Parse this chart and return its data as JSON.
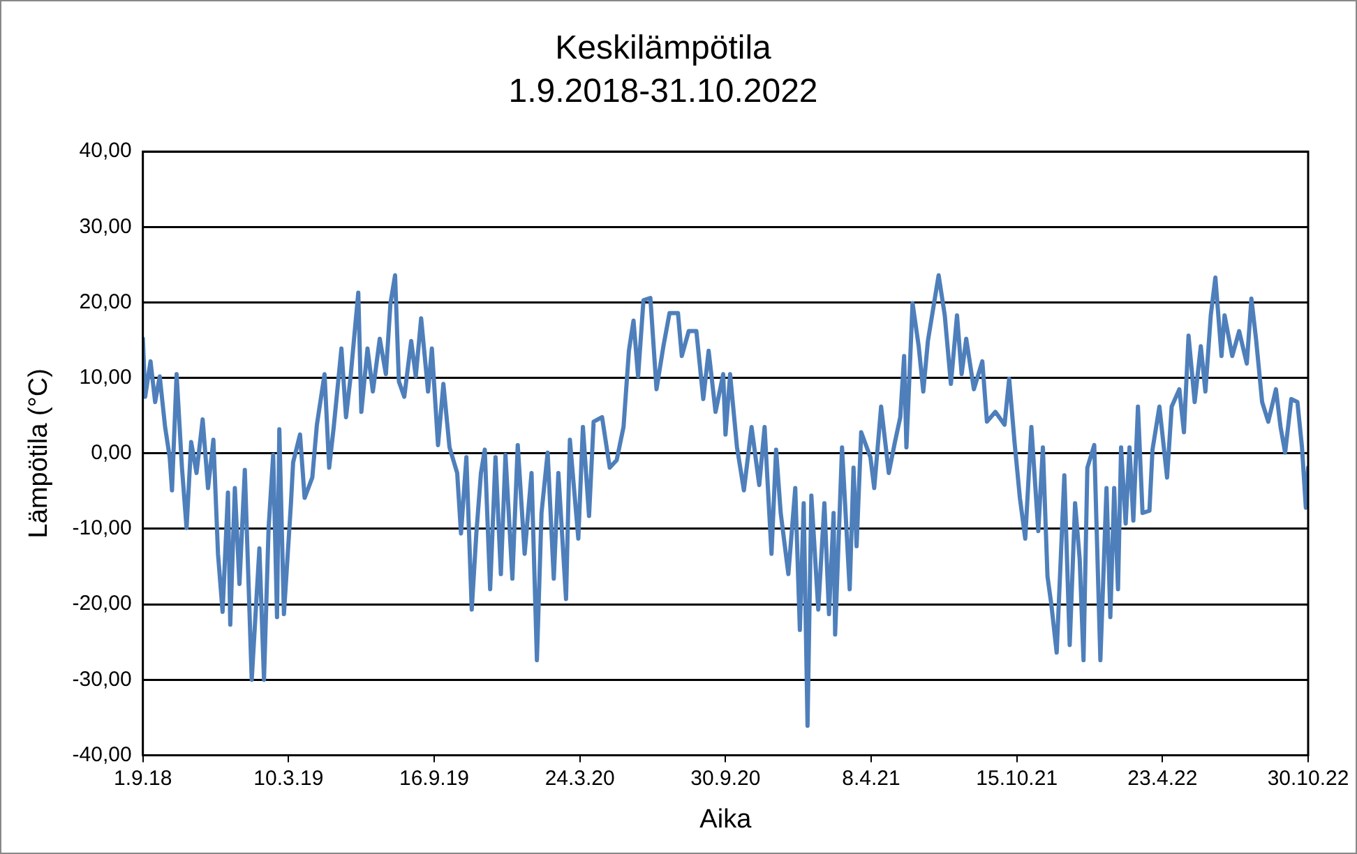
{
  "chart_data": {
    "type": "line",
    "title": "Keskilämpötila",
    "subtitle": "1.9.2018-31.10.2022",
    "xlabel": "Aika",
    "ylabel": "Lämpötila (°C)",
    "xlim": [
      "2018-09-01",
      "2022-10-30"
    ],
    "xticks": [
      {
        "value": "2018-09-01",
        "label": "1.9.18"
      },
      {
        "value": "2019-03-10",
        "label": "10.3.19"
      },
      {
        "value": "2019-09-16",
        "label": "16.9.19"
      },
      {
        "value": "2020-03-24",
        "label": "24.3.20"
      },
      {
        "value": "2020-09-30",
        "label": "30.9.20"
      },
      {
        "value": "2021-04-08",
        "label": "8.4.21"
      },
      {
        "value": "2021-10-15",
        "label": "15.10.21"
      },
      {
        "value": "2022-04-23",
        "label": "23.4.22"
      },
      {
        "value": "2022-10-30",
        "label": "30.10.22"
      }
    ],
    "ylim": [
      -40,
      40
    ],
    "yticks": [
      {
        "value": -40,
        "label": "-40,00"
      },
      {
        "value": -30,
        "label": "-30,00"
      },
      {
        "value": -20,
        "label": "-20,00"
      },
      {
        "value": -10,
        "label": "-10,00"
      },
      {
        "value": 0,
        "label": "0,00"
      },
      {
        "value": 10,
        "label": "10,00"
      },
      {
        "value": 20,
        "label": "20,00"
      },
      {
        "value": 30,
        "label": "30,00"
      },
      {
        "value": 40,
        "label": "40,00"
      }
    ],
    "grid": "y",
    "legend": false,
    "marker": "none",
    "line_style": "solid",
    "x": [
      "2018-09-01",
      "2018-09-04",
      "2018-09-11",
      "2018-09-17",
      "2018-09-23",
      "2018-09-30",
      "2018-10-06",
      "2018-10-09",
      "2018-10-15",
      "2018-10-22",
      "2018-10-28",
      "2018-11-03",
      "2018-11-10",
      "2018-11-18",
      "2018-11-25",
      "2018-12-02",
      "2018-12-08",
      "2018-12-14",
      "2018-12-21",
      "2018-12-24",
      "2018-12-30",
      "2019-01-05",
      "2019-01-12",
      "2019-01-21",
      "2019-01-31",
      "2019-02-06",
      "2019-02-12",
      "2019-02-18",
      "2019-02-23",
      "2019-02-26",
      "2019-03-04",
      "2019-03-13",
      "2019-03-16",
      "2019-03-25",
      "2019-03-31",
      "2019-04-10",
      "2019-04-16",
      "2019-04-26",
      "2019-05-02",
      "2019-05-08",
      "2019-05-18",
      "2019-05-24",
      "2019-05-30",
      "2019-06-09",
      "2019-06-13",
      "2019-06-21",
      "2019-06-28",
      "2019-07-07",
      "2019-07-15",
      "2019-07-21",
      "2019-07-27",
      "2019-08-01",
      "2019-08-08",
      "2019-08-17",
      "2019-08-23",
      "2019-08-30",
      "2019-09-08",
      "2019-09-13",
      "2019-09-21",
      "2019-09-28",
      "2019-10-06",
      "2019-10-16",
      "2019-10-21",
      "2019-10-28",
      "2019-11-04",
      "2019-11-10",
      "2019-11-16",
      "2019-11-21",
      "2019-11-28",
      "2019-12-05",
      "2019-12-12",
      "2019-12-18",
      "2019-12-27",
      "2020-01-03",
      "2020-01-12",
      "2020-01-21",
      "2020-01-28",
      "2020-02-03",
      "2020-02-11",
      "2020-02-19",
      "2020-02-25",
      "2020-03-06",
      "2020-03-11",
      "2020-03-22",
      "2020-03-28",
      "2020-04-05",
      "2020-04-11",
      "2020-04-22",
      "2020-05-02",
      "2020-05-11",
      "2020-05-20",
      "2020-05-27",
      "2020-06-02",
      "2020-06-08",
      "2020-06-15",
      "2020-06-24",
      "2020-07-02",
      "2020-07-11",
      "2020-07-19",
      "2020-07-30",
      "2020-08-04",
      "2020-08-13",
      "2020-08-23",
      "2020-09-01",
      "2020-09-08",
      "2020-09-17",
      "2020-09-27",
      "2020-09-30",
      "2020-10-06",
      "2020-10-15",
      "2020-10-24",
      "2020-11-03",
      "2020-11-13",
      "2020-11-20",
      "2020-11-29",
      "2020-12-05",
      "2020-12-11",
      "2020-12-21",
      "2020-12-30",
      "2021-01-05",
      "2021-01-10",
      "2021-01-15",
      "2021-01-20",
      "2021-01-29",
      "2021-02-06",
      "2021-02-12",
      "2021-02-18",
      "2021-02-20",
      "2021-03-01",
      "2021-03-11",
      "2021-03-16",
      "2021-03-20",
      "2021-03-26",
      "2021-04-07",
      "2021-04-12",
      "2021-04-21",
      "2021-05-01",
      "2021-05-09",
      "2021-05-16",
      "2021-05-21",
      "2021-05-24",
      "2021-06-01",
      "2021-06-09",
      "2021-06-15",
      "2021-06-21",
      "2021-07-05",
      "2021-07-13",
      "2021-07-21",
      "2021-07-29",
      "2021-08-04",
      "2021-08-10",
      "2021-08-20",
      "2021-08-31",
      "2021-09-06",
      "2021-09-17",
      "2021-09-29",
      "2021-10-05",
      "2021-10-12",
      "2021-10-19",
      "2021-10-26",
      "2021-11-03",
      "2021-11-12",
      "2021-11-18",
      "2021-11-24",
      "2021-11-29",
      "2021-12-06",
      "2021-12-16",
      "2021-12-23",
      "2021-12-30",
      "2022-01-05",
      "2022-01-10",
      "2022-01-15",
      "2022-01-24",
      "2022-02-01",
      "2022-02-09",
      "2022-02-14",
      "2022-02-19",
      "2022-02-24",
      "2022-02-28",
      "2022-03-06",
      "2022-03-11",
      "2022-03-16",
      "2022-03-22",
      "2022-03-28",
      "2022-04-06",
      "2022-04-10",
      "2022-04-19",
      "2022-04-29",
      "2022-05-05",
      "2022-05-15",
      "2022-05-21",
      "2022-05-27",
      "2022-06-04",
      "2022-06-12",
      "2022-06-18",
      "2022-06-25",
      "2022-07-01",
      "2022-07-09",
      "2022-07-13",
      "2022-07-23",
      "2022-08-01",
      "2022-08-11",
      "2022-08-17",
      "2022-08-23",
      "2022-08-31",
      "2022-09-08",
      "2022-09-18",
      "2022-09-24",
      "2022-09-30",
      "2022-10-08",
      "2022-10-16",
      "2022-10-22",
      "2022-10-27",
      "2022-10-30"
    ],
    "series": [
      {
        "color": "#4e7fbb",
        "values": [
          15.2,
          7.5,
          12.2,
          6.8,
          10.2,
          3.5,
          -0.5,
          -4.9,
          10.5,
          -1.9,
          -9.9,
          1.5,
          -2.6,
          4.5,
          -4.6,
          1.8,
          -13.3,
          -21,
          -5.2,
          -22.7,
          -4.6,
          -17.3,
          -2.2,
          -30,
          -12.6,
          -30,
          -9.9,
          -0.2,
          -21.7,
          3.2,
          -21.3,
          -6.9,
          -1.2,
          2.5,
          -5.9,
          -3.2,
          3.8,
          10.5,
          -1.9,
          3.5,
          13.9,
          4.8,
          10.2,
          21.3,
          5.5,
          13.9,
          8.2,
          15.2,
          10.5,
          19.9,
          23.6,
          9.5,
          7.5,
          14.9,
          10.2,
          17.9,
          8.2,
          13.9,
          1.1,
          9.2,
          0.8,
          -2.6,
          -10.6,
          -0.5,
          -20.7,
          -10.6,
          -2.6,
          0.5,
          -18,
          -0.5,
          -16,
          -0.2,
          -16.6,
          1.1,
          -13.3,
          -2.6,
          -27.4,
          -7.9,
          0.1,
          -16.6,
          -2.6,
          -19.3,
          1.8,
          -11.3,
          3.5,
          -8.3,
          4.2,
          4.8,
          -1.9,
          -0.9,
          3.5,
          13.6,
          17.6,
          10.2,
          20.3,
          20.6,
          8.5,
          14.2,
          18.6,
          18.6,
          12.9,
          16.2,
          16.2,
          7.2,
          13.6,
          5.5,
          10.5,
          2.5,
          10.5,
          0.8,
          -4.9,
          3.5,
          -4.2,
          3.5,
          -13.3,
          0.5,
          -7.9,
          -16,
          -4.6,
          -23.4,
          -6.6,
          -36.1,
          -5.6,
          -20.7,
          -6.6,
          -21.3,
          -7.9,
          -24,
          0.8,
          -18,
          -1.9,
          -12.3,
          2.8,
          -0.5,
          -4.6,
          6.2,
          -2.6,
          1.5,
          4.8,
          12.9,
          0.8,
          19.9,
          14.2,
          8.2,
          14.9,
          23.6,
          18.3,
          9.2,
          18.3,
          10.5,
          15.2,
          8.5,
          12.2,
          4.2,
          5.5,
          3.8,
          9.9,
          1.5,
          -5.9,
          -11.3,
          3.5,
          -10.3,
          0.8,
          -16.3,
          -20,
          -26.4,
          -2.9,
          -25.4,
          -6.6,
          -14,
          -27.4,
          -1.9,
          1.1,
          -27.4,
          -4.6,
          -21.7,
          -4.6,
          -18,
          0.8,
          -9.3,
          0.8,
          -8.9,
          6.2,
          -7.9,
          -7.6,
          0.5,
          6.2,
          -3.2,
          6.2,
          8.5,
          2.8,
          15.6,
          6.8,
          14.2,
          8.2,
          18.3,
          23.3,
          12.9,
          18.3,
          12.9,
          16.2,
          11.9,
          20.5,
          15.2,
          6.8,
          4.2,
          8.5,
          3.5,
          0.1,
          7.2,
          6.8,
          0.8,
          -7.2,
          -1.9
        ]
      }
    ]
  }
}
